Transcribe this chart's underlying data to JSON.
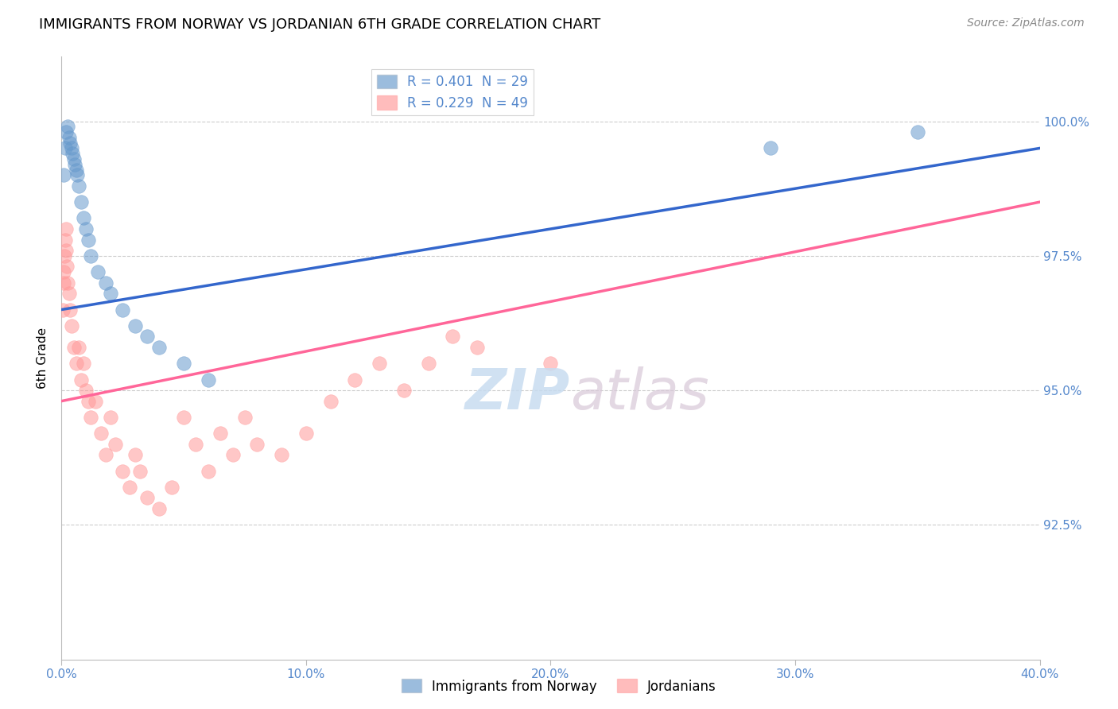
{
  "title": "IMMIGRANTS FROM NORWAY VS JORDANIAN 6TH GRADE CORRELATION CHART",
  "source": "Source: ZipAtlas.com",
  "xlabel_label": "Immigrants from Norway",
  "ylabel_label": "6th Grade",
  "x_min": 0.0,
  "x_max": 40.0,
  "y_min": 90.0,
  "y_max": 101.2,
  "y_ticks": [
    92.5,
    95.0,
    97.5,
    100.0
  ],
  "x_ticks": [
    0.0,
    10.0,
    20.0,
    30.0,
    40.0
  ],
  "norway_R": 0.401,
  "norway_N": 29,
  "jordan_R": 0.229,
  "jordan_N": 49,
  "norway_color": "#6699CC",
  "jordan_color": "#FF9999",
  "norway_line_color": "#3366CC",
  "jordan_line_color": "#FF6699",
  "watermark_zip": "ZIP",
  "watermark_atlas": "atlas",
  "norway_x": [
    0.1,
    0.15,
    0.2,
    0.25,
    0.3,
    0.35,
    0.4,
    0.45,
    0.5,
    0.55,
    0.6,
    0.65,
    0.7,
    0.8,
    0.9,
    1.0,
    1.1,
    1.2,
    1.5,
    1.8,
    2.0,
    2.5,
    3.0,
    3.5,
    4.0,
    5.0,
    6.0,
    29.0,
    35.0
  ],
  "norway_y": [
    99.0,
    99.5,
    99.8,
    99.9,
    99.7,
    99.6,
    99.5,
    99.4,
    99.3,
    99.2,
    99.1,
    99.0,
    98.8,
    98.5,
    98.2,
    98.0,
    97.8,
    97.5,
    97.2,
    97.0,
    96.8,
    96.5,
    96.2,
    96.0,
    95.8,
    95.5,
    95.2,
    99.5,
    99.8
  ],
  "jordan_x": [
    0.05,
    0.08,
    0.1,
    0.12,
    0.15,
    0.18,
    0.2,
    0.22,
    0.25,
    0.3,
    0.35,
    0.4,
    0.5,
    0.6,
    0.7,
    0.8,
    0.9,
    1.0,
    1.1,
    1.2,
    1.4,
    1.6,
    1.8,
    2.0,
    2.2,
    2.5,
    2.8,
    3.0,
    3.2,
    3.5,
    4.0,
    4.5,
    5.0,
    5.5,
    6.0,
    6.5,
    7.0,
    7.5,
    8.0,
    9.0,
    10.0,
    11.0,
    12.0,
    13.0,
    14.0,
    15.0,
    16.0,
    17.0,
    20.0
  ],
  "jordan_y": [
    96.5,
    97.0,
    97.2,
    97.5,
    97.8,
    98.0,
    97.6,
    97.3,
    97.0,
    96.8,
    96.5,
    96.2,
    95.8,
    95.5,
    95.8,
    95.2,
    95.5,
    95.0,
    94.8,
    94.5,
    94.8,
    94.2,
    93.8,
    94.5,
    94.0,
    93.5,
    93.2,
    93.8,
    93.5,
    93.0,
    92.8,
    93.2,
    94.5,
    94.0,
    93.5,
    94.2,
    93.8,
    94.5,
    94.0,
    93.8,
    94.2,
    94.8,
    95.2,
    95.5,
    95.0,
    95.5,
    96.0,
    95.8,
    95.5
  ],
  "norway_trendline": [
    96.5,
    99.5
  ],
  "norway_trend_x": [
    0.0,
    40.0
  ],
  "jordan_trendline": [
    94.8,
    98.5
  ],
  "jordan_trend_x": [
    0.0,
    40.0
  ]
}
